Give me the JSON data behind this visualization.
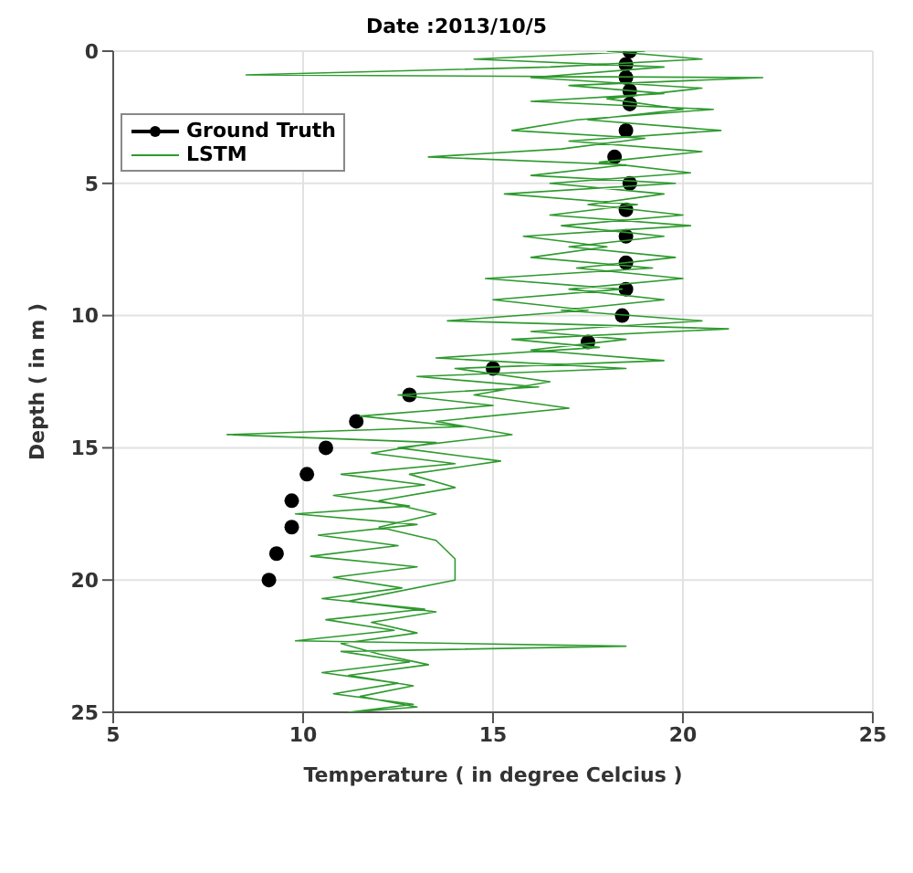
{
  "chart_data": {
    "type": "line",
    "title": "Date :2013/10/5",
    "xlabel": "Temperature ( in degree Celcius )",
    "ylabel": "Depth ( in m )",
    "xlim": [
      5,
      25
    ],
    "xticks": [
      5,
      10,
      15,
      20,
      25
    ],
    "ylim": [
      25,
      0
    ],
    "yticks": [
      0,
      5,
      10,
      15,
      20,
      25
    ],
    "grid": true,
    "legend": "top left",
    "series": [
      {
        "name": "Ground Truth",
        "type": "scatter",
        "marker": "circle",
        "color": "#000000",
        "x": [
          18.6,
          18.5,
          18.5,
          18.6,
          18.6,
          18.5,
          18.2,
          18.6,
          18.5,
          18.5,
          18.5,
          18.5,
          18.4,
          17.5,
          15.0,
          12.8,
          11.4,
          10.6,
          10.1,
          9.7,
          9.7,
          9.3,
          9.1
        ],
        "values": [
          0,
          0.5,
          1,
          1.5,
          2,
          3,
          4,
          5,
          6,
          7,
          8,
          9,
          10,
          11,
          12,
          13,
          14,
          15,
          16,
          17,
          18,
          19,
          20
        ]
      },
      {
        "name": "LSTM",
        "type": "line",
        "marker": "none",
        "color": "#2e9a2e",
        "x": [
          18.0,
          20.5,
          16.5,
          8.5,
          22.1,
          17.0,
          19.5,
          16.0,
          20.8,
          17.2,
          15.5,
          19.0,
          16.8,
          13.3,
          18.5,
          16.0,
          19.8,
          15.3,
          18.8,
          16.5,
          20.2,
          15.8,
          18.0,
          16.0,
          19.2,
          14.8,
          18.4,
          15.0,
          17.5,
          13.8,
          21.2,
          15.5,
          17.8,
          13.5,
          18.5,
          13.0,
          16.2,
          12.5,
          15.0,
          11.5,
          14.2,
          8.0,
          13.5,
          11.8,
          14.0,
          11.0,
          13.2,
          10.8,
          12.8,
          9.8,
          13.0,
          10.4,
          12.5,
          10.2,
          13.0,
          10.8,
          12.6,
          10.5,
          13.2,
          10.6,
          12.4,
          9.8,
          18.5,
          11.0,
          12.8,
          10.5,
          12.5,
          10.8,
          12.9,
          11.2,
          13.0,
          11.5,
          12.9,
          11.2,
          13.3,
          12.0,
          11.0,
          13.0,
          11.8,
          13.5,
          11.2,
          14.0,
          14.0,
          13.5,
          12.0,
          13.5,
          12.0,
          14.0,
          12.8,
          15.2,
          12.5,
          15.5,
          13.5,
          17.0,
          14.5,
          16.5,
          14.0,
          19.5,
          16.0,
          18.5,
          16.0,
          20.5,
          16.8,
          19.5,
          17.0,
          20.0,
          17.2,
          19.8,
          17.0,
          19.5,
          16.8,
          20.0,
          17.5,
          19.5,
          16.5,
          20.2,
          17.8,
          20.5,
          17.0,
          21.0,
          17.5,
          20.0,
          18.0,
          20.5,
          16.0,
          19.5,
          14.5,
          19.0
        ],
        "values": [
          0,
          0.3,
          0.6,
          0.9,
          1.0,
          1.3,
          1.6,
          1.9,
          2.2,
          2.6,
          3.0,
          3.3,
          3.7,
          4.0,
          4.3,
          4.7,
          5.0,
          5.4,
          5.8,
          6.2,
          6.6,
          7.0,
          7.4,
          7.8,
          8.2,
          8.6,
          9.0,
          9.4,
          9.8,
          10.2,
          10.5,
          10.9,
          11.2,
          11.6,
          12.0,
          12.3,
          12.7,
          13.0,
          13.4,
          13.8,
          14.2,
          14.5,
          14.8,
          15.2,
          15.6,
          16.0,
          16.4,
          16.8,
          17.2,
          17.5,
          17.9,
          18.3,
          18.7,
          19.1,
          19.5,
          19.9,
          20.3,
          20.7,
          21.1,
          21.5,
          21.9,
          22.3,
          22.5,
          22.7,
          23.1,
          23.5,
          23.9,
          24.3,
          24.7,
          25,
          24.8,
          24.4,
          24.0,
          23.6,
          23.2,
          22.8,
          22.4,
          22.0,
          21.6,
          21.2,
          20.8,
          20.0,
          19.2,
          18.5,
          18.0,
          17.5,
          17.0,
          16.5,
          16.0,
          15.5,
          15.0,
          14.5,
          14.0,
          13.5,
          13.0,
          12.5,
          12.0,
          11.7,
          11.3,
          10.9,
          10.6,
          10.2,
          9.8,
          9.4,
          9.0,
          8.6,
          8.2,
          7.8,
          7.4,
          7.0,
          6.6,
          6.2,
          5.8,
          5.4,
          5.0,
          4.6,
          4.2,
          3.8,
          3.4,
          3.0,
          2.6,
          2.2,
          1.8,
          1.4,
          1.0,
          0.6,
          0.3,
          0
        ]
      }
    ]
  }
}
